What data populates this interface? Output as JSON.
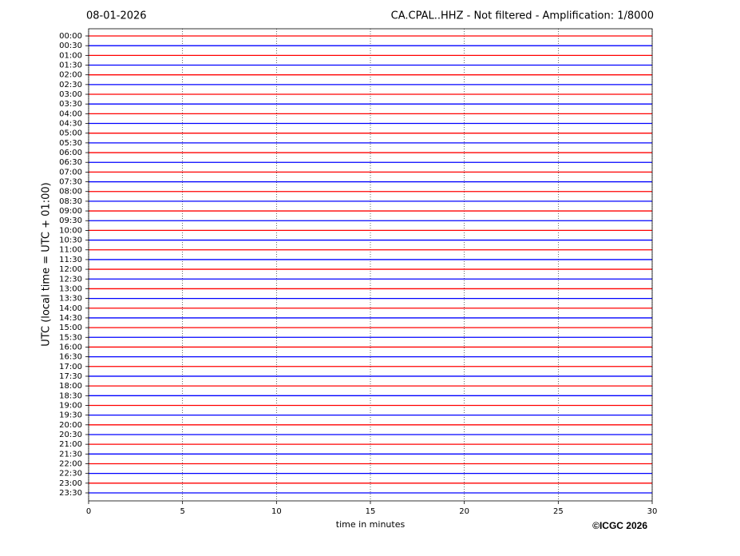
{
  "chart_data": {
    "type": "helicorder",
    "title": "08-01-2026",
    "subtitle": "CA.CPAL..HHZ - Not filtered - Amplification: 1/8000",
    "ylabel": "UTC (local time = UTC + 01:00)",
    "xlabel": "time in minutes",
    "credit": "©ICGC 2026",
    "categories": [
      "00:00",
      "00:30",
      "01:00",
      "01:30",
      "02:00",
      "02:30",
      "03:00",
      "03:30",
      "04:00",
      "04:30",
      "05:00",
      "05:30",
      "06:00",
      "06:30",
      "07:00",
      "07:30",
      "08:00",
      "08:30",
      "09:00",
      "09:30",
      "10:00",
      "10:30",
      "11:00",
      "11:30",
      "12:00",
      "12:30",
      "13:00",
      "13:30",
      "14:00",
      "14:30",
      "15:00",
      "15:30",
      "16:00",
      "16:30",
      "17:00",
      "17:30",
      "18:00",
      "18:30",
      "19:00",
      "19:30",
      "20:00",
      "20:30",
      "21:00",
      "21:30",
      "22:00",
      "22:30",
      "23:00",
      "23:30"
    ],
    "colors": [
      "#ff0000",
      "#0000ff"
    ],
    "xlim": [
      0,
      30
    ],
    "xticks": [
      0,
      5,
      10,
      15,
      20,
      25,
      30
    ],
    "grid": true
  }
}
